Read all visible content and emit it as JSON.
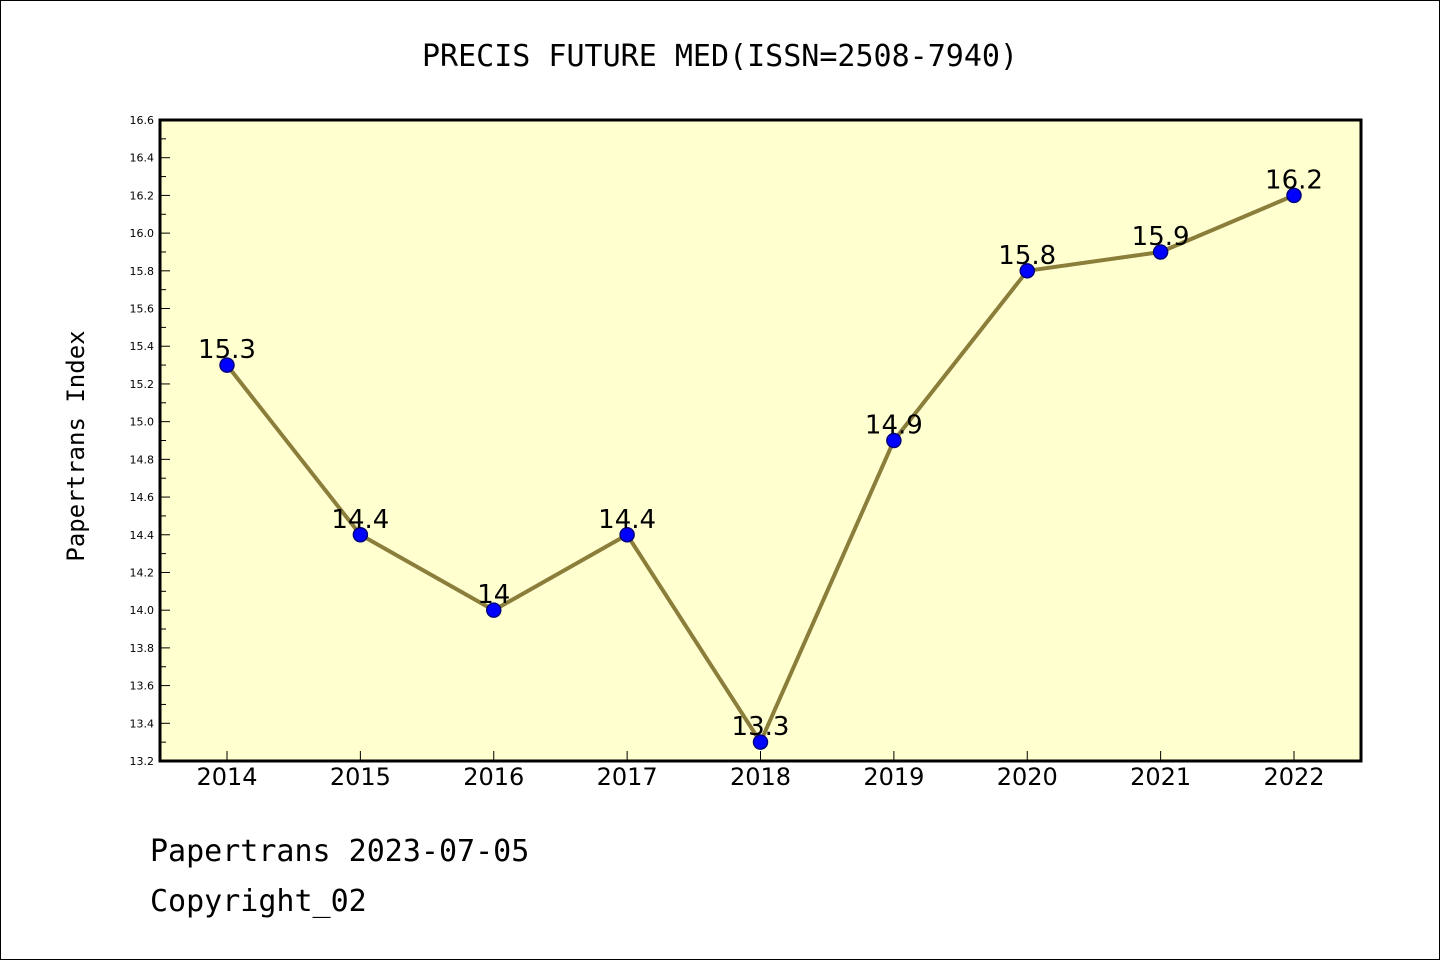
{
  "chart_data": {
    "type": "line",
    "title": "PRECIS FUTURE MED(ISSN=2508-7940)",
    "xlabel": "",
    "ylabel": "Papertrans Index",
    "categories": [
      "2014",
      "2015",
      "2016",
      "2017",
      "2018",
      "2019",
      "2020",
      "2021",
      "2022"
    ],
    "values": [
      15.3,
      14.4,
      14.0,
      14.4,
      13.3,
      14.9,
      15.8,
      15.9,
      16.2
    ],
    "data_labels": [
      "15.3",
      "14.4",
      "14",
      "14.4",
      "13.3",
      "14.9",
      "15.8",
      "15.9",
      "16.2"
    ],
    "ylim": [
      13.2,
      16.6
    ],
    "yticks": [
      "13.2",
      "13.4",
      "13.6",
      "13.8",
      "14.0",
      "14.2",
      "14.4",
      "14.6",
      "14.8",
      "15.0",
      "15.2",
      "15.4",
      "15.6",
      "15.8",
      "16.0",
      "16.2",
      "16.4",
      "16.6"
    ],
    "grid": false,
    "legend": "none",
    "colors": {
      "plot_background": "#ffffd0",
      "line": "#8b7d3a",
      "marker_fill": "#0000ff",
      "marker_edge": "#000080",
      "axes": "#000000"
    }
  },
  "footer": {
    "line1": "Papertrans 2023-07-05",
    "line2": "Copyright_02"
  }
}
